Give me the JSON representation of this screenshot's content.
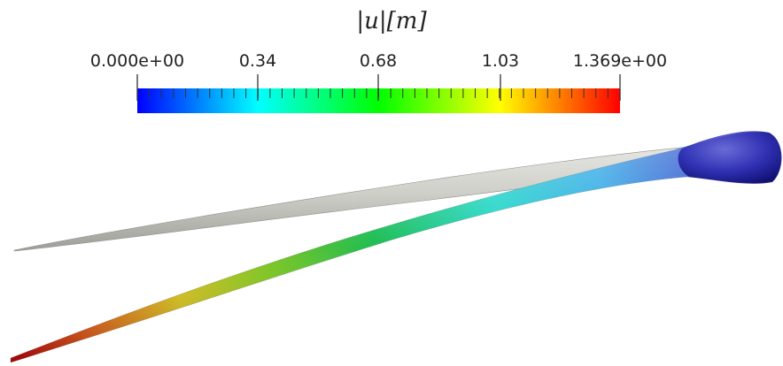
{
  "legend": {
    "title": "|u|[m]",
    "min_label": "0.000e+00",
    "tick_labels": [
      "0.34",
      "0.68",
      "1.03"
    ],
    "max_label": "1.369e+00",
    "range": [
      0.0,
      1.369
    ],
    "colormap": [
      "#0000ff",
      "#00ffff",
      "#00ff00",
      "#ffff00",
      "#ff0000"
    ]
  },
  "colors": {
    "undeformed_blade": "#c9c9c4",
    "deformed_root": "#1a1aa6",
    "deformed_tip": "#d40000"
  }
}
